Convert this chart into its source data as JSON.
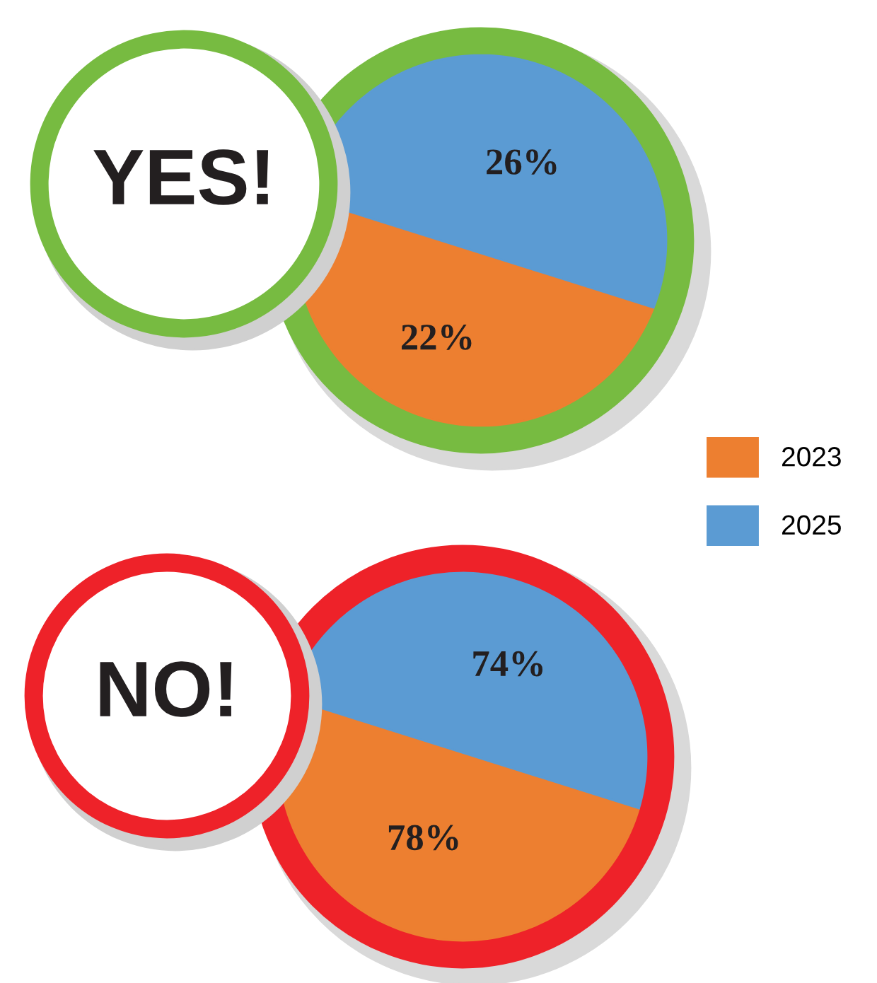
{
  "chart_data": {
    "type": "other",
    "categories": [
      "YES!",
      "NO!"
    ],
    "series": [
      {
        "name": "2023",
        "color": "#ed7f30",
        "values": [
          22,
          78
        ],
        "value_labels": [
          "22%",
          "78%"
        ]
      },
      {
        "name": "2025",
        "color": "#5b9bd3",
        "values": [
          26,
          74
        ],
        "value_labels": [
          "26%",
          "74%"
        ]
      }
    ],
    "legend": "right"
  }
}
